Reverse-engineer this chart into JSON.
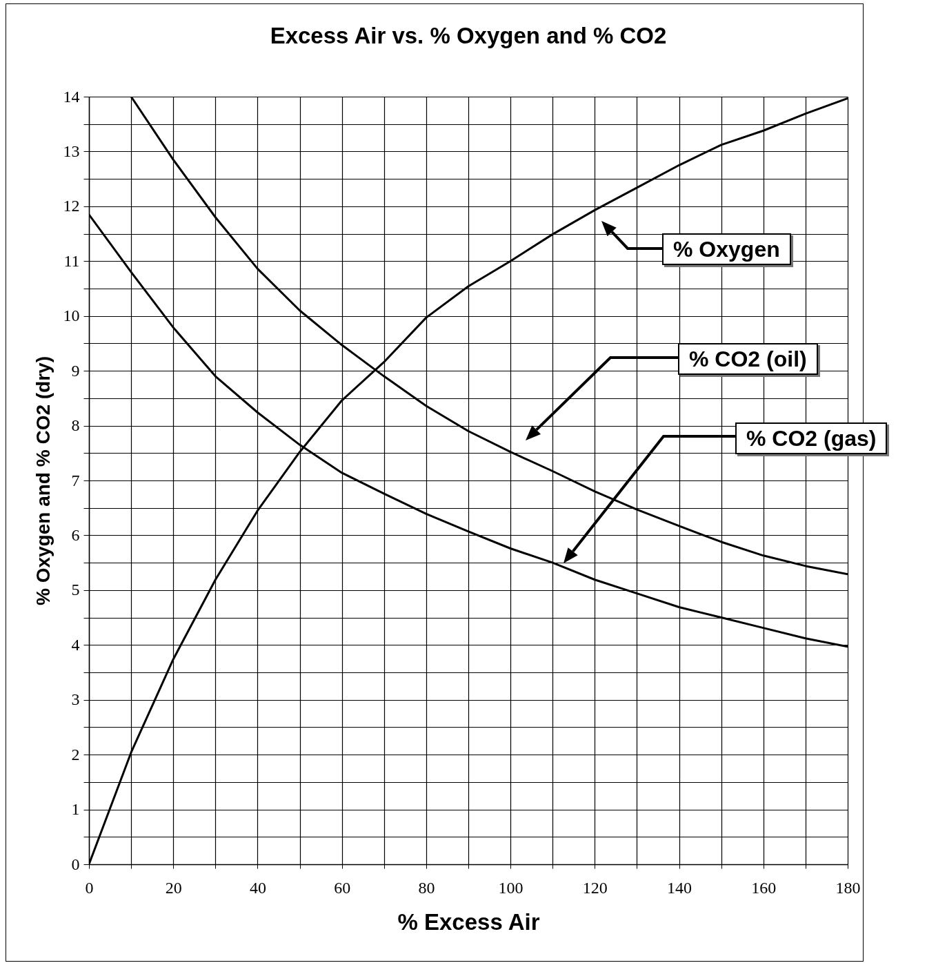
{
  "chart_data": {
    "type": "line",
    "title": "Excess Air vs. % Oxygen and % CO2",
    "xlabel": "% Excess Air",
    "ylabel": "% Oxygen and % CO2 (dry)",
    "xlim": [
      0,
      180
    ],
    "ylim": [
      0,
      14
    ],
    "xticks": [
      0,
      {
        "value": 10,
        "label": null
      },
      20,
      {
        "value": 30,
        "label": null
      },
      40,
      {
        "value": 50,
        "label": null
      },
      60,
      {
        "value": 70,
        "label": null
      },
      80,
      {
        "value": 90,
        "label": null
      },
      100,
      {
        "value": 110,
        "label": null
      },
      120,
      {
        "value": 130,
        "label": null
      },
      140,
      {
        "value": 150,
        "label": null
      },
      160,
      {
        "value": 170,
        "label": null
      },
      180
    ],
    "yticks": [
      0,
      {
        "value": 0.5,
        "label": null
      },
      1,
      {
        "value": 1.5,
        "label": null
      },
      2,
      {
        "value": 2.5,
        "label": null
      },
      3,
      {
        "value": 3.5,
        "label": null
      },
      4,
      {
        "value": 4.5,
        "label": null
      },
      5,
      {
        "value": 5.5,
        "label": null
      },
      6,
      {
        "value": 6.5,
        "label": null
      },
      7,
      {
        "value": 7.5,
        "label": null
      },
      8,
      {
        "value": 8.5,
        "label": null
      },
      9,
      {
        "value": 9.5,
        "label": null
      },
      10,
      {
        "value": 10.5,
        "label": null
      },
      11,
      {
        "value": 11.5,
        "label": null
      },
      12,
      {
        "value": 12.5,
        "label": null
      },
      13,
      {
        "value": 13.5,
        "label": null
      },
      14
    ],
    "grid": true,
    "legend": "right",
    "marker": "none",
    "line_style": "solid",
    "series": [
      {
        "name": "% Oxygen",
        "color": "#000000",
        "x": [
          0,
          10,
          20,
          30,
          40,
          50,
          60,
          70,
          80,
          90,
          100,
          110,
          120,
          130,
          140,
          150,
          160,
          170,
          180
        ],
        "values": [
          0,
          2.04,
          3.74,
          5.19,
          6.45,
          7.52,
          8.46,
          9.16,
          9.97,
          10.54,
          11.0,
          11.49,
          11.93,
          12.34,
          12.75,
          13.12,
          13.38,
          13.69,
          13.97
        ]
      },
      {
        "name": "% CO2 (oil)",
        "color": "#000000",
        "x": [
          10,
          20,
          30,
          40,
          50,
          60,
          70,
          80,
          90,
          100,
          110,
          120,
          130,
          140,
          150,
          160,
          170,
          180
        ],
        "values": [
          14.0,
          12.85,
          11.8,
          10.86,
          10.1,
          9.47,
          8.9,
          8.36,
          7.9,
          7.52,
          7.17,
          6.8,
          6.47,
          6.17,
          5.88,
          5.63,
          5.44,
          5.29
        ]
      },
      {
        "name": "% CO2 (gas)",
        "color": "#000000",
        "x": [
          0,
          10,
          20,
          30,
          40,
          50,
          60,
          70,
          80,
          90,
          100,
          110,
          120,
          130,
          140,
          150,
          160,
          170,
          180
        ],
        "values": [
          11.85,
          10.8,
          9.79,
          8.9,
          8.24,
          7.65,
          7.14,
          6.76,
          6.39,
          6.07,
          5.76,
          5.5,
          5.19,
          4.94,
          4.69,
          4.5,
          4.31,
          4.12,
          3.97
        ]
      }
    ]
  }
}
